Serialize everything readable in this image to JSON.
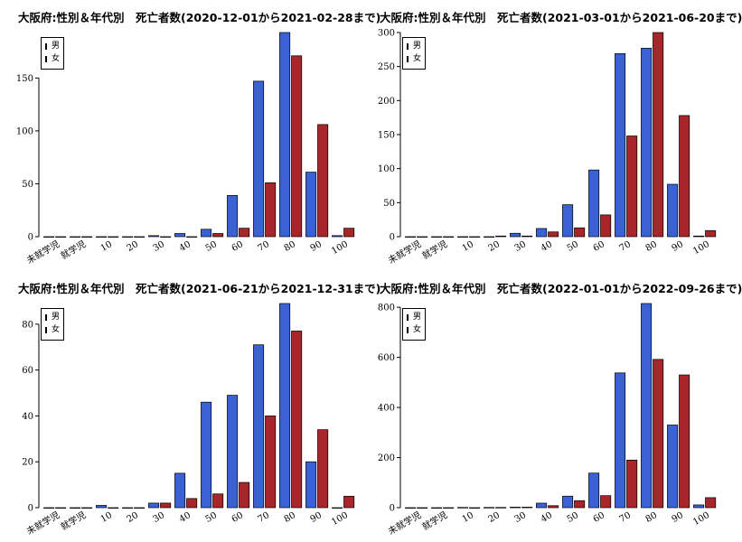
{
  "chart_data": [
    {
      "type": "bar",
      "title": "大阪府:性別＆年代別　死亡者数(2020-12-01から2021-02-28まで)",
      "categories": [
        "未就学児",
        "就学児",
        "10",
        "20",
        "30",
        "40",
        "50",
        "60",
        "70",
        "80",
        "90",
        "100"
      ],
      "series": [
        {
          "name": "男",
          "color": "#3b62d4",
          "values": [
            0,
            0,
            0,
            0,
            1,
            3,
            7,
            39,
            147,
            193,
            61,
            1
          ]
        },
        {
          "name": "女",
          "color": "#a6262a",
          "values": [
            0,
            0,
            0,
            0,
            0,
            0,
            3,
            8,
            51,
            171,
            106,
            8
          ]
        }
      ],
      "yticks": [
        0,
        50,
        100,
        150
      ],
      "ylim": [
        0,
        193
      ],
      "xlabel": "",
      "ylabel": "",
      "legend": "top-left"
    },
    {
      "type": "bar",
      "title": "大阪府:性別＆年代別　死亡者数(2021-03-01から2021-06-20まで)",
      "categories": [
        "未就学児",
        "就学児",
        "10",
        "20",
        "30",
        "40",
        "50",
        "60",
        "70",
        "80",
        "90",
        "100"
      ],
      "series": [
        {
          "name": "男",
          "color": "#3b62d4",
          "values": [
            0,
            0,
            0,
            0,
            5,
            12,
            47,
            98,
            269,
            277,
            77,
            1
          ]
        },
        {
          "name": "女",
          "color": "#a6262a",
          "values": [
            0,
            0,
            0,
            1,
            1,
            7,
            13,
            32,
            148,
            300,
            178,
            9
          ]
        }
      ],
      "yticks": [
        0,
        50,
        100,
        150,
        200,
        250,
        300
      ],
      "ylim": [
        0,
        300
      ],
      "xlabel": "",
      "ylabel": "",
      "legend": "top-left"
    },
    {
      "type": "bar",
      "title": "大阪府:性別＆年代別　死亡者数(2021-06-21から2021-12-31まで)",
      "categories": [
        "未就学児",
        "就学児",
        "10",
        "20",
        "30",
        "40",
        "50",
        "60",
        "70",
        "80",
        "90",
        "100"
      ],
      "series": [
        {
          "name": "男",
          "color": "#3b62d4",
          "values": [
            0,
            0,
            1,
            0,
            2,
            15,
            46,
            49,
            71,
            89,
            20,
            0
          ]
        },
        {
          "name": "女",
          "color": "#a6262a",
          "values": [
            0,
            0,
            0,
            0,
            2,
            4,
            6,
            11,
            40,
            77,
            34,
            5
          ]
        }
      ],
      "yticks": [
        0,
        20,
        40,
        60,
        80
      ],
      "ylim": [
        0,
        89
      ],
      "xlabel": "",
      "ylabel": "",
      "legend": "top-left"
    },
    {
      "type": "bar",
      "title": "大阪府:性別＆年代別　死亡者数(2022-01-01から2022-09-26まで)",
      "categories": [
        "未就学児",
        "就学児",
        "10",
        "20",
        "30",
        "40",
        "50",
        "60",
        "70",
        "80",
        "90",
        "100"
      ],
      "series": [
        {
          "name": "男",
          "color": "#3b62d4",
          "values": [
            0,
            0,
            1,
            1,
            2,
            18,
            46,
            138,
            538,
            815,
            330,
            11
          ]
        },
        {
          "name": "女",
          "color": "#a6262a",
          "values": [
            0,
            0,
            0,
            1,
            2,
            8,
            28,
            48,
            190,
            592,
            530,
            40
          ]
        }
      ],
      "yticks": [
        0,
        200,
        400,
        600,
        800
      ],
      "ylim": [
        0,
        815
      ],
      "xlabel": "",
      "ylabel": "",
      "legend": "top-left"
    }
  ]
}
